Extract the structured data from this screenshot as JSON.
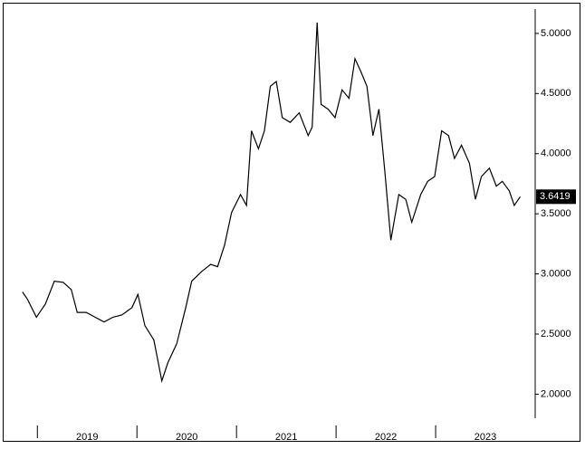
{
  "chart_data": {
    "type": "line",
    "color": "#000000",
    "x": [
      2018.85,
      2018.9,
      2018.99,
      2019.08,
      2019.17,
      2019.26,
      2019.34,
      2019.4,
      2019.49,
      2019.58,
      2019.67,
      2019.76,
      2019.85,
      2019.95,
      2020.01,
      2020.08,
      2020.17,
      2020.25,
      2020.31,
      2020.4,
      2020.49,
      2020.55,
      2020.65,
      2020.74,
      2020.81,
      2020.88,
      2020.95,
      2021.04,
      2021.1,
      2021.15,
      2021.22,
      2021.28,
      2021.34,
      2021.4,
      2021.46,
      2021.54,
      2021.63,
      2021.72,
      2021.76,
      2021.81,
      2021.85,
      2021.92,
      2021.99,
      2022.06,
      2022.13,
      2022.19,
      2022.25,
      2022.31,
      2022.37,
      2022.43,
      2022.49,
      2022.55,
      2022.63,
      2022.7,
      2022.76,
      2022.85,
      2022.92,
      2022.99,
      2023.06,
      2023.13,
      2023.19,
      2023.26,
      2023.34,
      2023.4,
      2023.46,
      2023.54,
      2023.61,
      2023.67,
      2023.74,
      2023.79,
      2023.85
    ],
    "values": [
      2.85,
      2.79,
      2.64,
      2.75,
      2.94,
      2.93,
      2.87,
      2.68,
      2.68,
      2.64,
      2.6,
      2.64,
      2.66,
      2.72,
      2.83,
      2.57,
      2.45,
      2.11,
      2.26,
      2.42,
      2.72,
      2.94,
      3.02,
      3.08,
      3.06,
      3.24,
      3.51,
      3.66,
      3.57,
      4.19,
      4.04,
      4.19,
      4.56,
      4.6,
      4.3,
      4.26,
      4.34,
      4.15,
      4.22,
      5.09,
      4.41,
      4.37,
      4.3,
      4.53,
      4.46,
      4.79,
      4.68,
      4.56,
      4.15,
      4.37,
      3.85,
      3.28,
      3.66,
      3.62,
      3.43,
      3.66,
      3.77,
      3.81,
      4.19,
      4.15,
      3.96,
      4.07,
      3.92,
      3.62,
      3.81,
      3.88,
      3.73,
      3.77,
      3.69,
      3.57,
      3.6419
    ],
    "xlim": [
      2018.67,
      2024.0
    ],
    "xticks": [
      2019,
      2020,
      2021,
      2022,
      2023
    ],
    "ylim": [
      1.8,
      5.24
    ],
    "yticks": [
      {
        "value": 2,
        "label": "2.0000"
      },
      {
        "value": 2.5,
        "label": "2.5000"
      },
      {
        "value": 3,
        "label": "3.0000"
      },
      {
        "value": 3.5,
        "label": "3.5000"
      },
      {
        "value": 4,
        "label": "4.0000"
      },
      {
        "value": 4.5,
        "label": "4.5000"
      },
      {
        "value": 5,
        "label": "5.0000"
      }
    ]
  }
}
